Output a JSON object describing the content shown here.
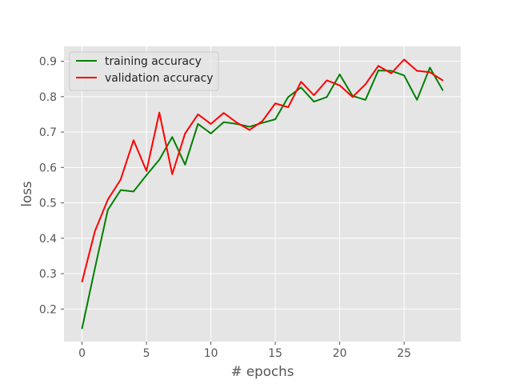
{
  "chart_data": {
    "type": "line",
    "title": "",
    "xlabel": "# epochs",
    "ylabel": "loss",
    "xlim": [
      -1.4,
      29.4
    ],
    "ylim": [
      0.108,
      0.942
    ],
    "xticks": [
      0,
      5,
      10,
      15,
      20,
      25
    ],
    "yticks": [
      0.2,
      0.3,
      0.4,
      0.5,
      0.6,
      0.7,
      0.8,
      0.9
    ],
    "grid": true,
    "legend_position": "top-left",
    "x": [
      0,
      1,
      2,
      3,
      4,
      5,
      6,
      7,
      8,
      9,
      10,
      11,
      12,
      13,
      14,
      15,
      16,
      17,
      18,
      19,
      20,
      21,
      22,
      23,
      24,
      25,
      26,
      27,
      28
    ],
    "series": [
      {
        "name": "training accuracy",
        "color": "#008000",
        "values": [
          0.145,
          0.315,
          0.48,
          0.536,
          0.532,
          0.578,
          0.622,
          0.686,
          0.608,
          0.723,
          0.696,
          0.728,
          0.723,
          0.715,
          0.726,
          0.736,
          0.799,
          0.826,
          0.786,
          0.799,
          0.863,
          0.802,
          0.791,
          0.874,
          0.873,
          0.86,
          0.791,
          0.882,
          0.818
        ]
      },
      {
        "name": "validation accuracy",
        "color": "#ff0000",
        "values": [
          0.277,
          0.42,
          0.509,
          0.566,
          0.677,
          0.59,
          0.755,
          0.581,
          0.696,
          0.75,
          0.723,
          0.754,
          0.727,
          0.706,
          0.731,
          0.781,
          0.77,
          0.842,
          0.804,
          0.846,
          0.832,
          0.799,
          0.835,
          0.887,
          0.866,
          0.905,
          0.873,
          0.869,
          0.846
        ]
      }
    ]
  }
}
